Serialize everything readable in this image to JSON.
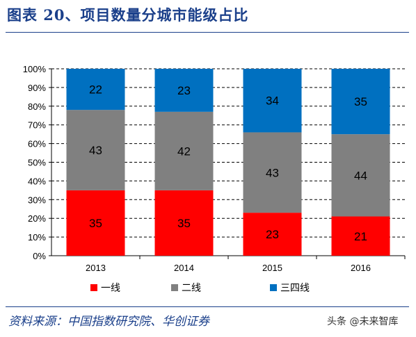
{
  "header": {
    "title": "图表 20、项目数量分城市能级占比"
  },
  "footer": {
    "source": "资料来源：中国指数研究院、华创证券",
    "watermark": "头条 @未来智库"
  },
  "chart_data": {
    "type": "bar",
    "stacked": true,
    "categories": [
      "2013",
      "2014",
      "2015",
      "2016"
    ],
    "series": [
      {
        "name": "一线",
        "values": [
          35,
          35,
          23,
          21
        ],
        "color": "#ff0000"
      },
      {
        "name": "二线",
        "values": [
          43,
          42,
          43,
          44
        ],
        "color": "#808080"
      },
      {
        "name": "三四线",
        "values": [
          22,
          23,
          34,
          35
        ],
        "color": "#0070c0"
      }
    ],
    "yticks": [
      "0%",
      "10%",
      "20%",
      "30%",
      "40%",
      "50%",
      "60%",
      "70%",
      "80%",
      "90%",
      "100%"
    ],
    "ylim": [
      0,
      100
    ],
    "grid": true,
    "legend": "bottom"
  }
}
